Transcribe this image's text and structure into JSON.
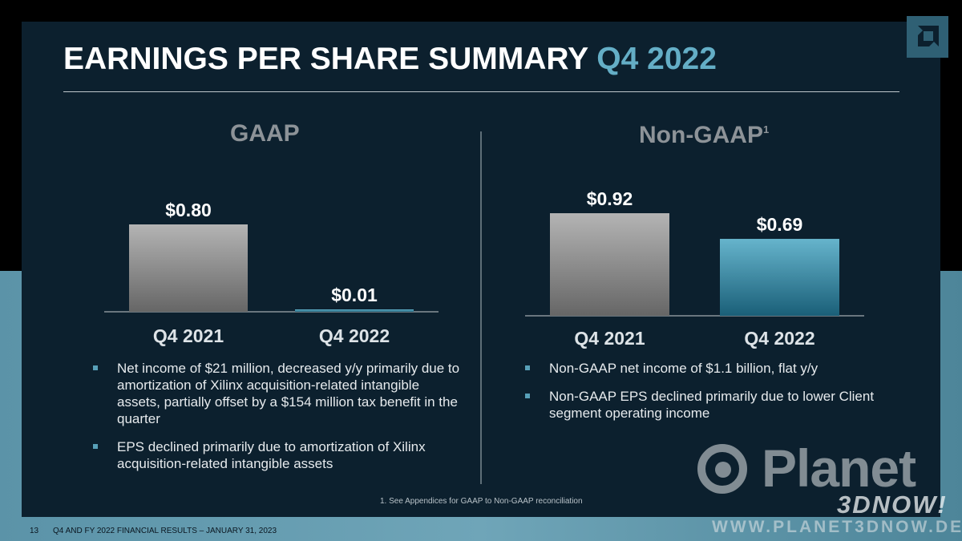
{
  "title": {
    "main": "EARNINGS PER SHARE SUMMARY",
    "accent": "Q4 2022"
  },
  "footnote": "1. See Appendices for GAAP to Non-GAAP reconciliation",
  "footer": {
    "page_number": "13",
    "text": "Q4 AND FY 2022 FINANCIAL RESULTS – JANUARY 31, 2023"
  },
  "watermark": {
    "word": "Planet",
    "tag": "3DNOW!",
    "url": "WWW.PLANET3DNOW.DE"
  },
  "colors": {
    "accent": "#64aec6",
    "bar_prior": "#a8a8a8",
    "bar_current": "#4a9db5",
    "panel": "#0c202e"
  },
  "logo": {
    "icon": "amd-arrow-logo-icon"
  },
  "chart_data": [
    {
      "type": "bar",
      "title": "GAAP",
      "categories": [
        "Q4 2021",
        "Q4 2022"
      ],
      "values": [
        0.8,
        0.01
      ],
      "labels": [
        "$0.80",
        "$0.01"
      ],
      "ylim": [
        0,
        1.0
      ]
    },
    {
      "type": "bar",
      "title": "Non-GAAP",
      "title_superscript": "1",
      "categories": [
        "Q4 2021",
        "Q4 2022"
      ],
      "values": [
        0.92,
        0.69
      ],
      "labels": [
        "$0.92",
        "$0.69"
      ],
      "ylim": [
        0,
        1.0
      ]
    }
  ],
  "gaap_bullets": [
    "Net income of $21 million, decreased y/y primarily due to amortization of Xilinx acquisition-related intangible assets, partially offset by a $154 million tax benefit in the quarter",
    "EPS declined primarily due to amortization of Xilinx acquisition-related intangible assets"
  ],
  "nongaap_bullets": [
    "Non-GAAP net income of $1.1 billion, flat y/y",
    "Non-GAAP EPS declined primarily due to lower Client segment operating income"
  ]
}
